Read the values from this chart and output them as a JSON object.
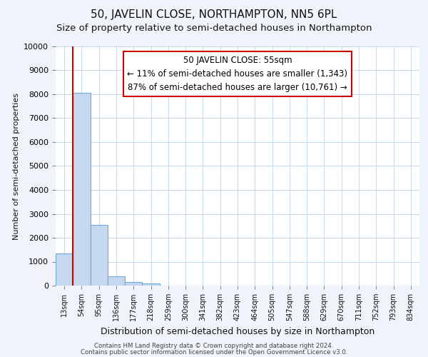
{
  "title": "50, JAVELIN CLOSE, NORTHAMPTON, NN5 6PL",
  "subtitle": "Size of property relative to semi-detached houses in Northampton",
  "xlabel": "Distribution of semi-detached houses by size in Northampton",
  "ylabel": "Number of semi-detached properties",
  "footer_line1": "Contains HM Land Registry data © Crown copyright and database right 2024.",
  "footer_line2": "Contains public sector information licensed under the Open Government Licence v3.0.",
  "bar_labels": [
    "13sqm",
    "54sqm",
    "95sqm",
    "136sqm",
    "177sqm",
    "218sqm",
    "259sqm",
    "300sqm",
    "341sqm",
    "382sqm",
    "423sqm",
    "464sqm",
    "505sqm",
    "547sqm",
    "588sqm",
    "629sqm",
    "670sqm",
    "711sqm",
    "752sqm",
    "793sqm",
    "834sqm"
  ],
  "bar_values": [
    1340,
    8050,
    2540,
    390,
    155,
    80,
    0,
    0,
    0,
    0,
    0,
    0,
    0,
    0,
    0,
    0,
    0,
    0,
    0,
    0,
    0
  ],
  "bar_color": "#c5d8f0",
  "bar_edge_color": "#6aaad4",
  "highlight_line_color": "#cc0000",
  "annotation_line1": "50 JAVELIN CLOSE: 55sqm",
  "annotation_line2": "← 11% of semi-detached houses are smaller (1,343)",
  "annotation_line3": "87% of semi-detached houses are larger (10,761) →",
  "ylim": [
    0,
    10000
  ],
  "yticks": [
    0,
    1000,
    2000,
    3000,
    4000,
    5000,
    6000,
    7000,
    8000,
    9000,
    10000
  ],
  "plot_bg_color": "#ffffff",
  "fig_bg_color": "#f0f4fa",
  "grid_color": "#c8d8ec",
  "title_fontsize": 11,
  "subtitle_fontsize": 9.5,
  "ylabel_fontsize": 8,
  "xlabel_fontsize": 9,
  "annotation_fontsize": 8.5
}
